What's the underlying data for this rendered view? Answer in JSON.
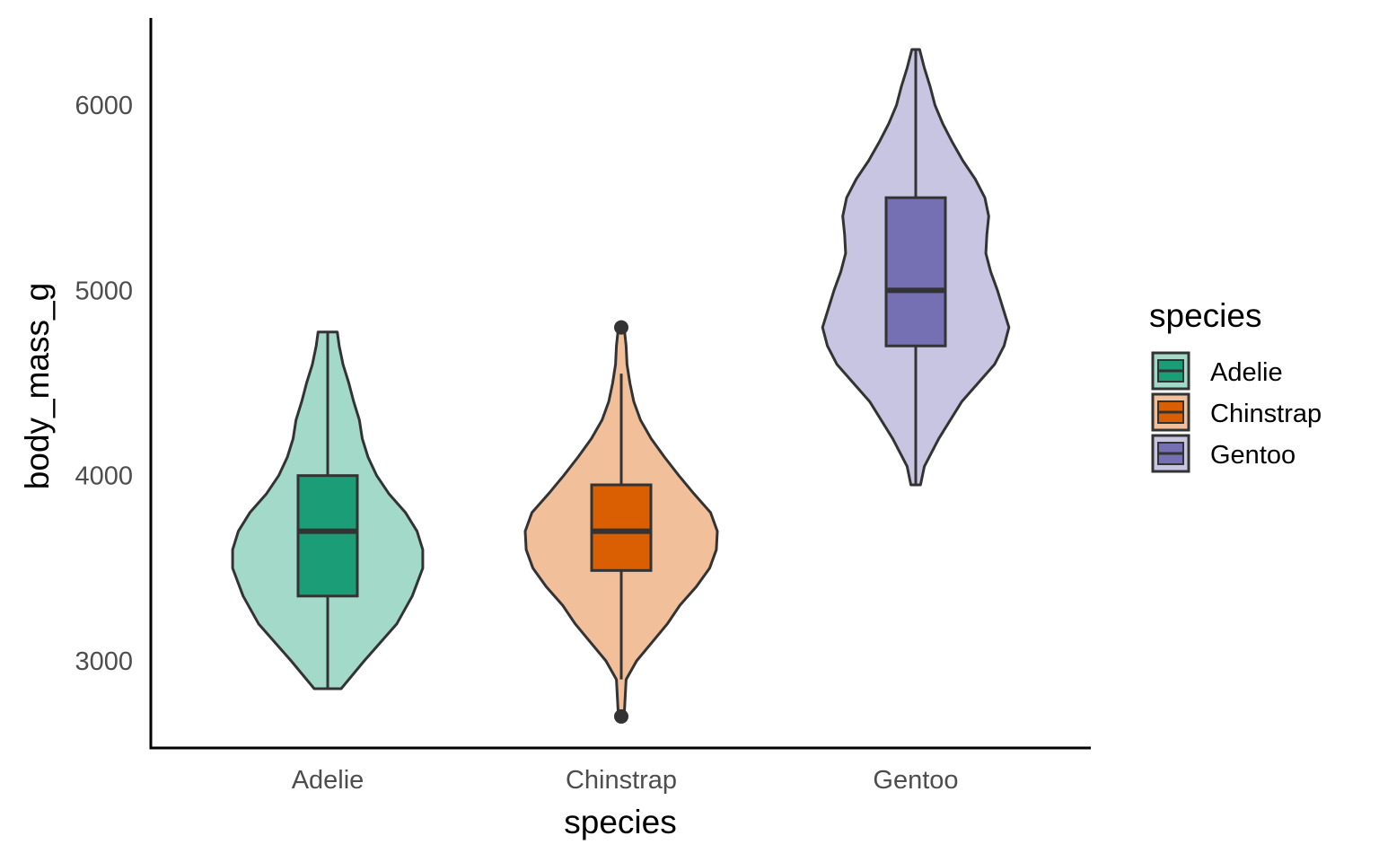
{
  "chart_data": {
    "type": "violin",
    "xlabel": "species",
    "ylabel": "body_mass_g",
    "categories": [
      "Adelie",
      "Chinstrap",
      "Gentoo"
    ],
    "ylim": [
      2530,
      6470
    ],
    "yticks": [
      3000,
      4000,
      5000,
      6000
    ],
    "grid": false,
    "legend": {
      "title": "species",
      "position": "right",
      "entries": [
        "Adelie",
        "Chinstrap",
        "Gentoo"
      ]
    },
    "colors": {
      "Adelie": {
        "violin": "#a3d9c9",
        "box": "#1b9e77"
      },
      "Chinstrap": {
        "violin": "#f1bf99",
        "box": "#d95f02"
      },
      "Gentoo": {
        "violin": "#c7c5e2",
        "box": "#7570b3"
      },
      "outline": "#333333"
    },
    "series": [
      {
        "category": "Adelie",
        "min": 2850,
        "q1": 3350,
        "median": 3700,
        "q3": 4000,
        "max": 4775,
        "whisker_low": 2850,
        "whisker_high": 4775,
        "outliers": [],
        "density": [
          [
            2850,
            0.14
          ],
          [
            3000,
            0.38
          ],
          [
            3200,
            0.72
          ],
          [
            3350,
            0.88
          ],
          [
            3500,
            0.99
          ],
          [
            3600,
            0.99
          ],
          [
            3700,
            0.93
          ],
          [
            3800,
            0.81
          ],
          [
            3900,
            0.64
          ],
          [
            4000,
            0.51
          ],
          [
            4100,
            0.42
          ],
          [
            4200,
            0.36
          ],
          [
            4300,
            0.33
          ],
          [
            4400,
            0.27
          ],
          [
            4500,
            0.22
          ],
          [
            4600,
            0.16
          ],
          [
            4700,
            0.12
          ],
          [
            4775,
            0.1
          ]
        ]
      },
      {
        "category": "Chinstrap",
        "min": 2700,
        "q1": 3488,
        "median": 3700,
        "q3": 3950,
        "max": 4800,
        "whisker_low": 2900,
        "whisker_high": 4550,
        "outliers": [
          2700,
          4800
        ],
        "density": [
          [
            2700,
            0.03
          ],
          [
            2800,
            0.04
          ],
          [
            2900,
            0.05
          ],
          [
            3000,
            0.16
          ],
          [
            3100,
            0.32
          ],
          [
            3200,
            0.48
          ],
          [
            3300,
            0.61
          ],
          [
            3400,
            0.78
          ],
          [
            3500,
            0.92
          ],
          [
            3600,
            0.99
          ],
          [
            3700,
            1.0
          ],
          [
            3800,
            0.93
          ],
          [
            3900,
            0.76
          ],
          [
            4000,
            0.6
          ],
          [
            4100,
            0.45
          ],
          [
            4200,
            0.31
          ],
          [
            4300,
            0.2
          ],
          [
            4400,
            0.13
          ],
          [
            4500,
            0.09
          ],
          [
            4600,
            0.06
          ],
          [
            4700,
            0.05
          ],
          [
            4800,
            0.03
          ]
        ]
      },
      {
        "category": "Gentoo",
        "min": 3950,
        "q1": 4700,
        "median": 5000,
        "q3": 5500,
        "max": 6300,
        "whisker_low": 3950,
        "whisker_high": 6300,
        "outliers": [],
        "density": [
          [
            3950,
            0.05
          ],
          [
            4050,
            0.09
          ],
          [
            4200,
            0.24
          ],
          [
            4400,
            0.48
          ],
          [
            4600,
            0.82
          ],
          [
            4700,
            0.92
          ],
          [
            4800,
            0.97
          ],
          [
            4900,
            0.91
          ],
          [
            5000,
            0.85
          ],
          [
            5100,
            0.78
          ],
          [
            5200,
            0.73
          ],
          [
            5300,
            0.74
          ],
          [
            5400,
            0.76
          ],
          [
            5500,
            0.72
          ],
          [
            5600,
            0.62
          ],
          [
            5700,
            0.49
          ],
          [
            5800,
            0.38
          ],
          [
            5900,
            0.28
          ],
          [
            6000,
            0.2
          ],
          [
            6100,
            0.15
          ],
          [
            6200,
            0.09
          ],
          [
            6300,
            0.04
          ]
        ]
      }
    ]
  }
}
